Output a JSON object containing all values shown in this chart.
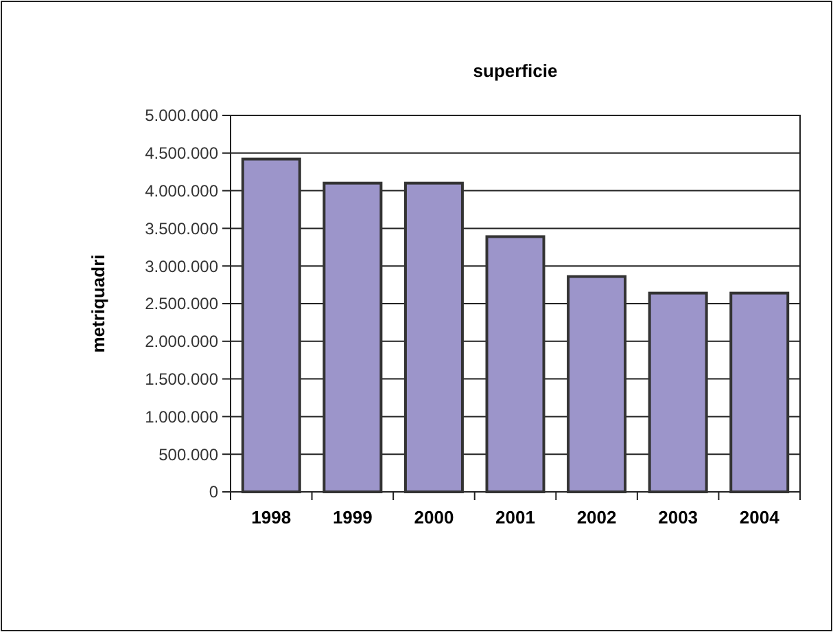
{
  "chart_data": {
    "type": "bar",
    "title": "superficie",
    "ylabel": "metriquadri",
    "categories": [
      "1998",
      "1999",
      "2000",
      "2001",
      "2002",
      "2003",
      "2004"
    ],
    "values": [
      4420000,
      4100000,
      4100000,
      3390000,
      2860000,
      2640000,
      2640000
    ],
    "color": "#9c95ca",
    "ylim": [
      0,
      5000000
    ],
    "yticks": [
      {
        "value": 0,
        "label": "0"
      },
      {
        "value": 500000,
        "label": "500.000"
      },
      {
        "value": 1000000,
        "label": "1.000.000"
      },
      {
        "value": 1500000,
        "label": "1.500.000"
      },
      {
        "value": 2000000,
        "label": "2.000.000"
      },
      {
        "value": 2500000,
        "label": "2.500.000"
      },
      {
        "value": 3000000,
        "label": "3.000.000"
      },
      {
        "value": 3500000,
        "label": "3.500.000"
      },
      {
        "value": 4000000,
        "label": "4.000.000"
      },
      {
        "value": 4500000,
        "label": "4.500.000"
      },
      {
        "value": 5000000,
        "label": "5.000.000"
      }
    ],
    "grid": "y"
  }
}
